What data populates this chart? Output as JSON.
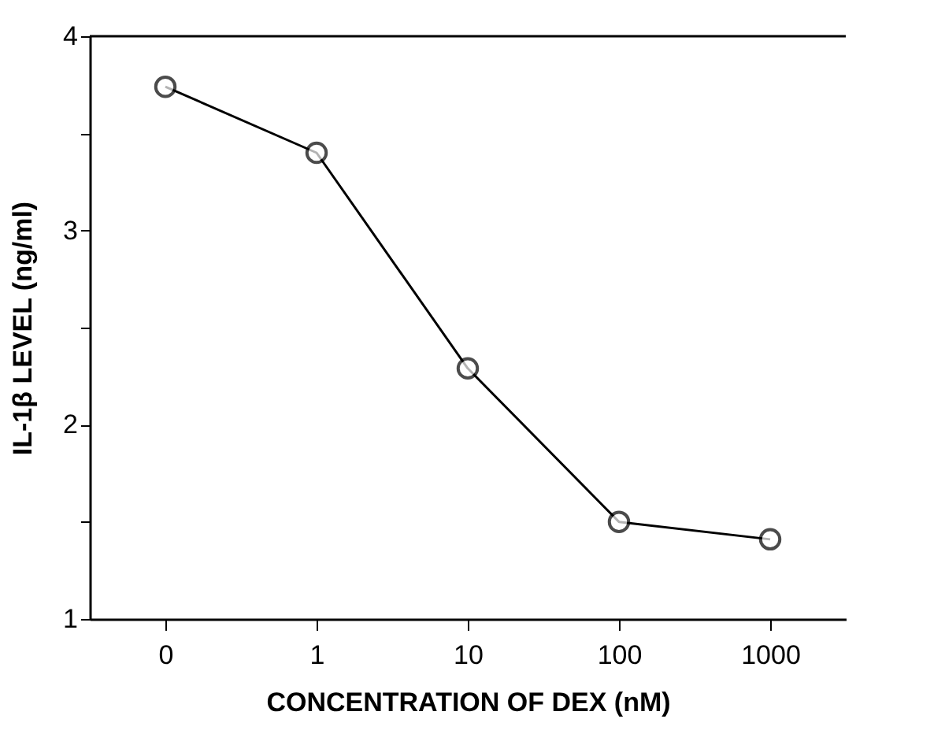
{
  "chart_data": {
    "type": "line",
    "xlabel": "CONCENTRATION OF DEX (nM)",
    "ylabel": "IL-1β LEVEL (ng/ml)",
    "categories": [
      "0",
      "1",
      "10",
      "100",
      "1000"
    ],
    "series": [
      {
        "color": "#000000",
        "values": [
          3.74,
          3.4,
          2.29,
          1.5,
          1.41
        ]
      }
    ],
    "ylim": [
      1,
      4
    ],
    "yticks": [
      1,
      {
        "value": 1.5,
        "label": null
      },
      2,
      {
        "value": 2.5,
        "label": null
      },
      3,
      {
        "value": 3.5,
        "label": null
      },
      4
    ],
    "marker": "circle",
    "line_style": "solid",
    "grid": false,
    "legend": false
  }
}
